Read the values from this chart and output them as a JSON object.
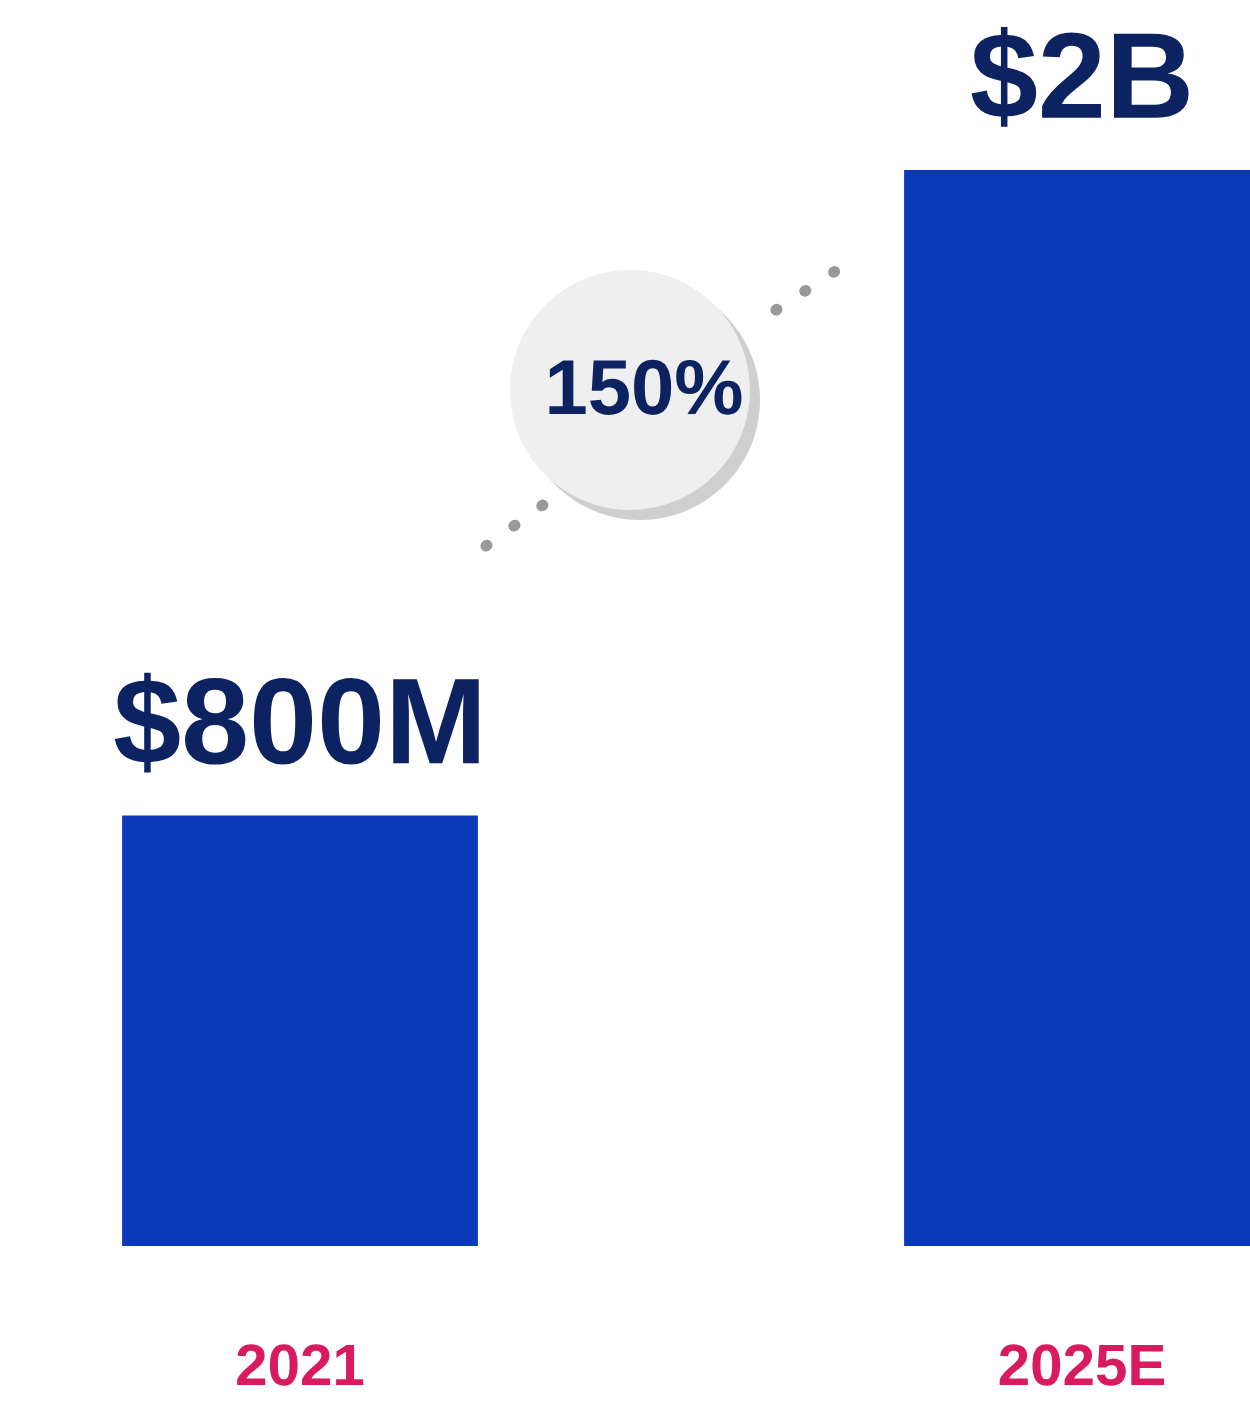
{
  "chart_data": {
    "type": "bar",
    "categories": [
      "2021",
      "2025E"
    ],
    "values": [
      800000000,
      2000000000
    ],
    "value_labels": [
      "$800M",
      "$2B"
    ],
    "colors": [
      "#0a3ab8",
      "#0a3ab8"
    ],
    "annotations": [
      "150%"
    ]
  }
}
